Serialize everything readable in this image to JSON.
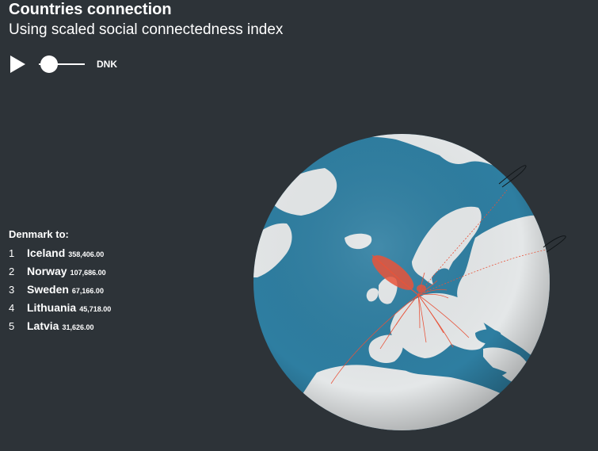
{
  "header": {
    "title": "Countries connection",
    "subtitle": "Using scaled social connectedness index"
  },
  "controls": {
    "play_icon": "play-icon",
    "slider_position": 0,
    "country_code": "DNK"
  },
  "ranking": {
    "heading": "Denmark to:",
    "items": [
      {
        "rank": "1",
        "name": "Iceland",
        "value": "358,406.00"
      },
      {
        "rank": "2",
        "name": "Norway",
        "value": "107,686.00"
      },
      {
        "rank": "3",
        "name": "Sweden",
        "value": "67,166.00"
      },
      {
        "rank": "4",
        "name": "Lithuania",
        "value": "45,718.00"
      },
      {
        "rank": "5",
        "name": "Latvia",
        "value": "31,626.00"
      }
    ]
  },
  "globe": {
    "ocean_color": "#2e7ea1",
    "land_color": "#e4e7e8",
    "arc_color": "#e8533a",
    "origin": "Denmark"
  }
}
